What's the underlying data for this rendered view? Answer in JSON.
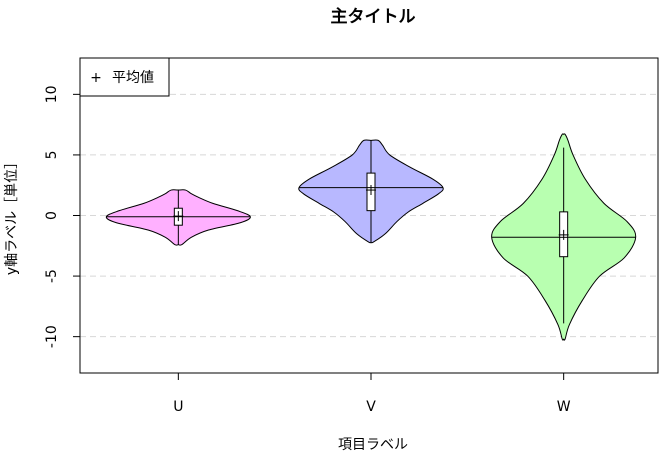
{
  "chart_data": {
    "type": "violin",
    "title": "主タイトル",
    "xlabel": "項目ラベル",
    "ylabel": "y軸ラベル［単位］",
    "categories": [
      "U",
      "V",
      "W"
    ],
    "ylim": [
      -13,
      13
    ],
    "yticks": [
      -10,
      -5,
      0,
      5,
      10
    ],
    "grid": "horizontal dashed",
    "legend": {
      "position": "top-left",
      "entries": [
        {
          "symbol": "+",
          "label": "平均値"
        }
      ]
    },
    "series": [
      {
        "category": "U",
        "color": "#ffb0ff",
        "min": -2.4,
        "max": 2.1,
        "q1": -0.8,
        "median": -0.1,
        "q3": 0.6,
        "mean": -0.05,
        "whisker_low": -2.4,
        "whisker_high": 2.1,
        "density": [
          [
            -2.4,
            0.05
          ],
          [
            -1.8,
            0.18
          ],
          [
            -1.2,
            0.42
          ],
          [
            -0.6,
            0.86
          ],
          [
            -0.1,
            1.0
          ],
          [
            0.4,
            0.82
          ],
          [
            1.0,
            0.48
          ],
          [
            1.5,
            0.28
          ],
          [
            1.8,
            0.18
          ],
          [
            2.1,
            0.1
          ]
        ]
      },
      {
        "category": "V",
        "color": "#b8b8ff",
        "min": -2.2,
        "max": 6.2,
        "q1": 0.4,
        "median": 2.3,
        "q3": 3.5,
        "mean": 2.1,
        "whisker_low": -2.2,
        "whisker_high": 6.2,
        "density": [
          [
            -2.2,
            0.03
          ],
          [
            -1.5,
            0.2
          ],
          [
            -0.5,
            0.36
          ],
          [
            0.3,
            0.52
          ],
          [
            1.0,
            0.72
          ],
          [
            1.8,
            0.94
          ],
          [
            2.3,
            1.0
          ],
          [
            3.0,
            0.86
          ],
          [
            4.0,
            0.54
          ],
          [
            5.0,
            0.26
          ],
          [
            5.8,
            0.16
          ],
          [
            6.2,
            0.1
          ]
        ]
      },
      {
        "category": "W",
        "color": "#b8ffb0",
        "min": -10.2,
        "max": 6.7,
        "q1": -3.4,
        "median": -1.8,
        "q3": 0.3,
        "mean": -1.6,
        "whisker_low": -8.9,
        "whisker_high": 5.6,
        "density": [
          [
            -10.2,
            0.02
          ],
          [
            -9.0,
            0.08
          ],
          [
            -7.0,
            0.26
          ],
          [
            -5.0,
            0.5
          ],
          [
            -3.5,
            0.84
          ],
          [
            -1.8,
            1.0
          ],
          [
            -0.5,
            0.88
          ],
          [
            1.0,
            0.56
          ],
          [
            3.0,
            0.3
          ],
          [
            5.0,
            0.13
          ],
          [
            6.2,
            0.06
          ],
          [
            6.7,
            0.02
          ]
        ]
      }
    ]
  }
}
